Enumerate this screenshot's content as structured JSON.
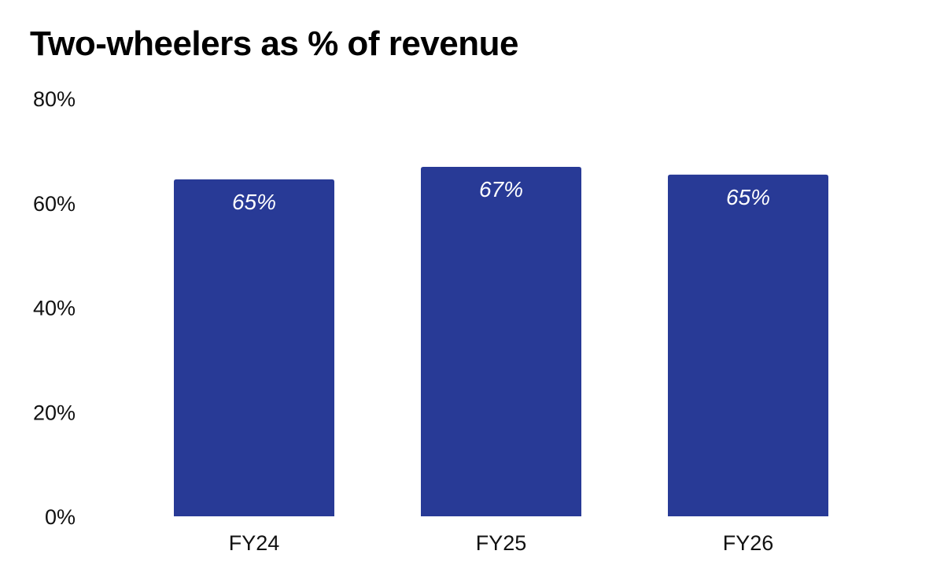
{
  "chart_data": {
    "type": "bar",
    "title": "Two-wheelers as % of revenue",
    "categories": [
      "FY24",
      "FY25",
      "FY26"
    ],
    "values": [
      64.5,
      66.9,
      65.4
    ],
    "data_labels": [
      "65%",
      "67%",
      "65%"
    ],
    "ylim": [
      0,
      80
    ],
    "y_ticks": [
      0,
      20,
      40,
      60,
      80
    ],
    "y_tick_labels": [
      "0%",
      "20%",
      "40%",
      "60%",
      "80%"
    ],
    "grid": false,
    "legend": "none",
    "bar_color": "#283a96",
    "label_color": "#ffffff"
  }
}
